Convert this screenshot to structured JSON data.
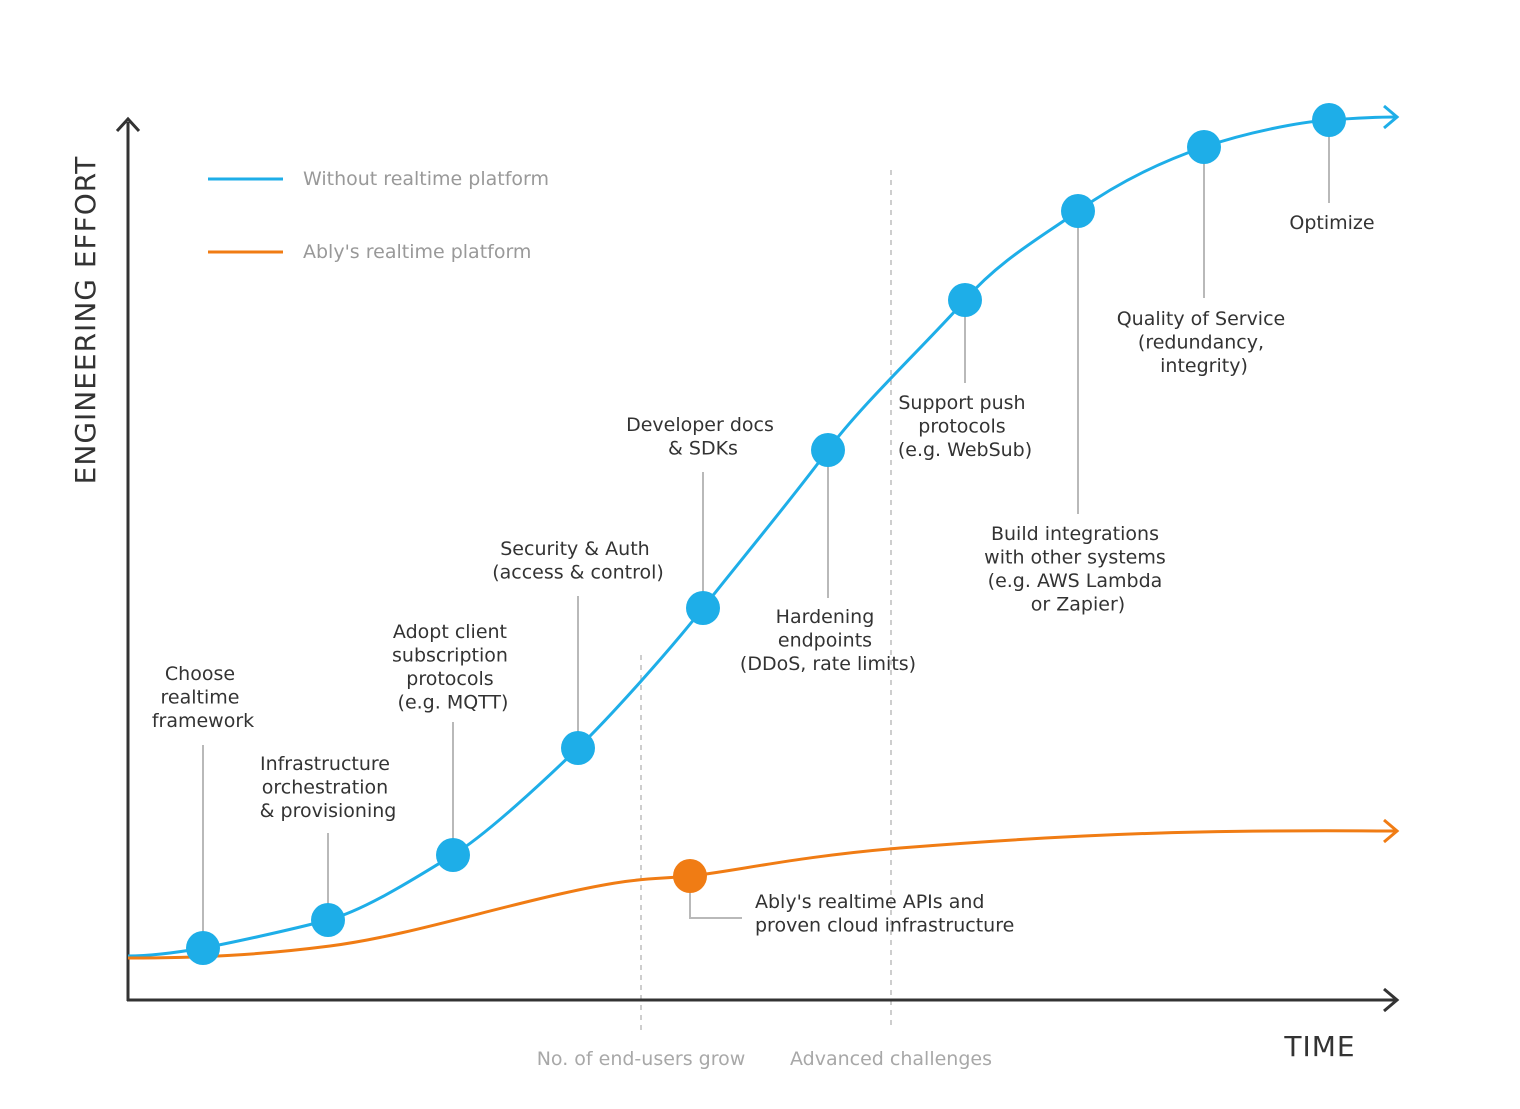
{
  "chart_data": {
    "type": "line",
    "xlabel": "TIME",
    "ylabel": "ENGINEERING EFFORT",
    "colors": {
      "without": "#1EAEE8",
      "ably": "#F07C14",
      "axis": "#333333",
      "leader": "#b9b9b9"
    },
    "legend": [
      {
        "name": "Without realtime platform",
        "color": "#1EAEE8"
      },
      {
        "name": "Ably's realtime platform",
        "color": "#F07C14"
      }
    ],
    "phases": [
      {
        "label": "No. of end-users grow",
        "x": 0.4
      },
      {
        "label": "Advanced challenges",
        "x": 0.6
      }
    ],
    "series": [
      {
        "name": "Without realtime platform",
        "points": [
          {
            "x": 0.06,
            "y": 0.06,
            "label": [
              "Choose",
              "realtime",
              "framework"
            ]
          },
          {
            "x": 0.16,
            "y": 0.1,
            "label": [
              "Infrastructure",
              "orchestration",
              "& provisioning"
            ]
          },
          {
            "x": 0.26,
            "y": 0.17,
            "label": [
              "Adopt client",
              "subscription",
              "protocols",
              "(e.g. MQTT)"
            ]
          },
          {
            "x": 0.36,
            "y": 0.28,
            "label": [
              "Security & Auth",
              "(access & control)"
            ]
          },
          {
            "x": 0.46,
            "y": 0.44,
            "label": [
              "Developer docs",
              "& SDKs"
            ]
          },
          {
            "x": 0.56,
            "y": 0.62,
            "label": [
              "Hardening",
              "endpoints",
              "(DDoS, rate limits)"
            ]
          },
          {
            "x": 0.66,
            "y": 0.78,
            "label": [
              "Support push",
              "protocols",
              "(e.g. WebSub)"
            ]
          },
          {
            "x": 0.75,
            "y": 0.88,
            "label": [
              "Build integrations",
              "with other systems",
              "(e.g. AWS Lambda",
              "or Zapier)"
            ]
          },
          {
            "x": 0.85,
            "y": 0.95,
            "label": [
              "Quality of Service",
              "(redundancy,",
              "integrity)"
            ]
          },
          {
            "x": 0.95,
            "y": 0.98,
            "label": [
              "Optimize"
            ]
          }
        ]
      },
      {
        "name": "Ably's realtime platform",
        "points": [
          {
            "x": 0.44,
            "y": 0.14,
            "label": [
              "Ably's realtime APIs and",
              "proven cloud infrastructure"
            ]
          }
        ]
      }
    ]
  }
}
